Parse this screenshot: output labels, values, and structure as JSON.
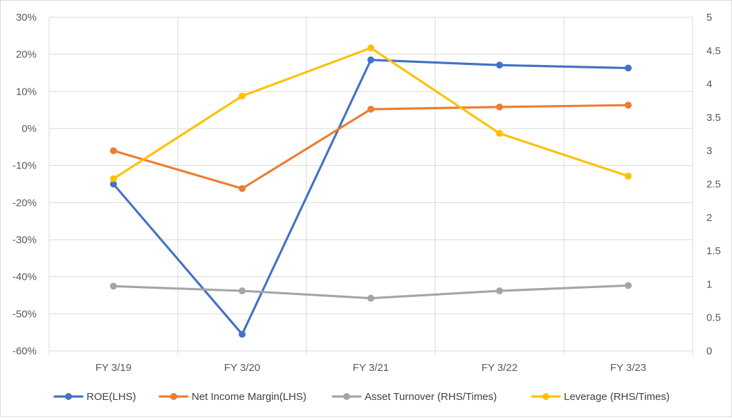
{
  "chart_data": {
    "type": "line",
    "title": "",
    "categories": [
      "FY 3/19",
      "FY 3/20",
      "FY 3/21",
      "FY 3/22",
      "FY 3/23"
    ],
    "left_axis": {
      "ylim": [
        -60,
        30
      ],
      "ticks": [
        30,
        20,
        10,
        0,
        -10,
        -20,
        -30,
        -40,
        -50,
        -60
      ],
      "tick_labels": [
        "30%",
        "20%",
        "10%",
        "0%",
        "-10%",
        "-20%",
        "-30%",
        "-40%",
        "-50%",
        "-60%"
      ]
    },
    "right_axis": {
      "ylim": [
        0,
        5
      ],
      "ticks": [
        5,
        4.5,
        4,
        3.5,
        3,
        2.5,
        2,
        1.5,
        1,
        0.5,
        0
      ],
      "tick_labels": [
        "5",
        "4.5",
        "4",
        "3.5",
        "3",
        "2.5",
        "2",
        "1.5",
        "1",
        "0.5",
        "0"
      ]
    },
    "grid": true,
    "legend_position": "bottom",
    "series": [
      {
        "name": "ROE(LHS)",
        "axis": "left",
        "color": "#4472C4",
        "values": [
          -15,
          -55.5,
          18.5,
          17.1,
          16.3
        ]
      },
      {
        "name": "Net Income Margin(LHS)",
        "axis": "left",
        "color": "#ED7D31",
        "values": [
          -6,
          -16.2,
          5.2,
          5.8,
          6.3
        ]
      },
      {
        "name": "Asset Turnover (RHS/Times)",
        "axis": "right",
        "color": "#A5A5A5",
        "values": [
          0.97,
          0.9,
          0.79,
          0.9,
          0.98
        ]
      },
      {
        "name": "Leverage (RHS/Times)",
        "axis": "right",
        "color": "#FFC000",
        "values": [
          2.58,
          3.82,
          4.54,
          3.26,
          2.62
        ]
      }
    ]
  }
}
